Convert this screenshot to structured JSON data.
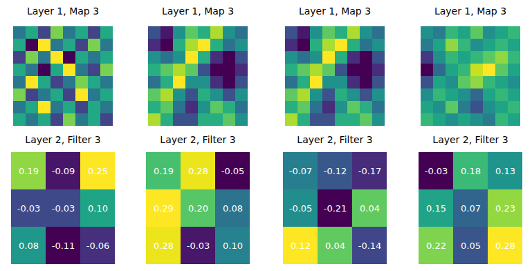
{
  "chart_data": [
    {
      "type": "heatmap",
      "title": "Layer 1, Map 3",
      "color": "viridis",
      "tick_labels": false,
      "cells": [
        [
          0.45,
          0.5,
          0.4,
          0.55,
          0.45,
          0.5,
          0.4,
          0.5
        ],
        [
          0.5,
          0.35,
          0.6,
          0.45,
          0.5,
          0.4,
          0.55,
          0.45
        ],
        [
          0.4,
          0.55,
          0.45,
          0.6,
          0.35,
          0.5,
          0.45,
          0.5
        ],
        [
          0.5,
          0.45,
          0.35,
          0.5,
          0.6,
          0.45,
          0.4,
          0.55
        ],
        [
          0.45,
          0.6,
          0.5,
          0.4,
          0.45,
          0.55,
          0.5,
          0.45
        ],
        [
          0.55,
          0.4,
          0.45,
          0.5,
          0.4,
          0.6,
          0.45,
          0.5
        ],
        [
          0.45,
          0.5,
          0.6,
          0.45,
          0.5,
          0.4,
          0.5,
          0.45
        ],
        [
          0.5,
          0.45,
          0.5,
          0.4,
          0.55,
          0.45,
          0.5,
          0.4
        ]
      ]
    },
    {
      "type": "heatmap",
      "title": "Layer 1, Map 3",
      "color": "viridis",
      "tick_labels": false,
      "cells": [
        [
          0.3,
          0.15,
          0.5,
          0.7,
          0.6,
          0.8,
          0.5,
          0.4
        ],
        [
          0.2,
          0.1,
          0.6,
          0.8,
          0.9,
          0.6,
          0.4,
          0.5
        ],
        [
          0.5,
          0.4,
          0.5,
          0.9,
          0.6,
          0.2,
          0.1,
          0.3
        ],
        [
          0.6,
          0.7,
          0.8,
          0.7,
          0.3,
          0.1,
          0.1,
          0.2
        ],
        [
          0.4,
          0.6,
          0.9,
          0.5,
          0.5,
          0.2,
          0.1,
          0.3
        ],
        [
          0.7,
          0.8,
          0.5,
          0.3,
          0.6,
          0.5,
          0.3,
          0.5
        ],
        [
          0.6,
          0.7,
          0.4,
          0.2,
          0.5,
          0.7,
          0.6,
          0.4
        ],
        [
          0.8,
          0.6,
          0.3,
          0.3,
          0.6,
          0.6,
          0.7,
          0.5
        ]
      ]
    },
    {
      "type": "heatmap",
      "title": "Layer 1, Map 3",
      "color": "viridis",
      "tick_labels": false,
      "cells": [
        [
          0.25,
          0.1,
          0.45,
          0.65,
          0.55,
          0.75,
          0.45,
          0.35
        ],
        [
          0.15,
          0.05,
          0.55,
          0.75,
          0.85,
          0.55,
          0.35,
          0.45
        ],
        [
          0.45,
          0.35,
          0.45,
          0.85,
          0.55,
          0.15,
          0.05,
          0.25
        ],
        [
          0.55,
          0.65,
          0.75,
          0.65,
          0.25,
          0.05,
          0.05,
          0.15
        ],
        [
          0.35,
          0.55,
          0.85,
          0.45,
          0.45,
          0.15,
          0.05,
          0.25
        ],
        [
          0.65,
          0.75,
          0.45,
          0.25,
          0.55,
          0.45,
          0.25,
          0.45
        ],
        [
          0.55,
          0.65,
          0.35,
          0.15,
          0.45,
          0.65,
          0.55,
          0.35
        ],
        [
          0.75,
          0.55,
          0.25,
          0.25,
          0.55,
          0.55,
          0.65,
          0.45
        ]
      ]
    },
    {
      "type": "heatmap",
      "title": "Layer 1, Map 3",
      "color": "viridis",
      "tick_labels": false,
      "cells": [
        [
          0.5,
          0.45,
          0.6,
          0.55,
          0.65,
          0.5,
          0.55,
          0.6
        ],
        [
          0.45,
          0.55,
          0.7,
          0.6,
          0.5,
          0.55,
          0.6,
          0.55
        ],
        [
          0.3,
          0.5,
          0.6,
          0.55,
          0.6,
          0.65,
          0.7,
          0.6
        ],
        [
          0.2,
          0.4,
          0.55,
          0.6,
          0.75,
          0.8,
          0.65,
          0.55
        ],
        [
          0.35,
          0.55,
          0.5,
          0.65,
          0.7,
          0.6,
          0.55,
          0.5
        ],
        [
          0.5,
          0.6,
          0.55,
          0.5,
          0.4,
          0.55,
          0.6,
          0.55
        ],
        [
          0.55,
          0.5,
          0.65,
          0.45,
          0.35,
          0.5,
          0.55,
          0.6
        ],
        [
          0.6,
          0.55,
          0.5,
          0.55,
          0.5,
          0.45,
          0.6,
          0.55
        ]
      ]
    },
    {
      "type": "heatmap",
      "title": "Layer 2, Filter 3",
      "color": "viridis",
      "tick_labels": false,
      "data_labels": true,
      "cells": [
        [
          0.19,
          -0.09,
          0.25
        ],
        [
          -0.03,
          -0.03,
          0.1
        ],
        [
          0.08,
          -0.11,
          -0.06
        ]
      ]
    },
    {
      "type": "heatmap",
      "title": "Layer 2, Filter 3",
      "color": "viridis",
      "tick_labels": false,
      "data_labels": true,
      "cells": [
        [
          0.19,
          0.28,
          -0.05
        ],
        [
          0.29,
          0.2,
          0.08
        ],
        [
          0.28,
          -0.03,
          0.1
        ]
      ]
    },
    {
      "type": "heatmap",
      "title": "Layer 2, Filter 3",
      "color": "viridis",
      "tick_labels": false,
      "data_labels": true,
      "cells": [
        [
          -0.07,
          -0.12,
          -0.17
        ],
        [
          -0.05,
          -0.21,
          0.04
        ],
        [
          0.12,
          0.04,
          -0.14
        ]
      ]
    },
    {
      "type": "heatmap",
      "title": "Layer 2, Filter 3",
      "color": "viridis",
      "tick_labels": false,
      "data_labels": true,
      "cells": [
        [
          -0.03,
          0.18,
          0.13
        ],
        [
          0.15,
          0.07,
          0.23
        ],
        [
          0.22,
          0.05,
          0.28
        ]
      ]
    }
  ]
}
